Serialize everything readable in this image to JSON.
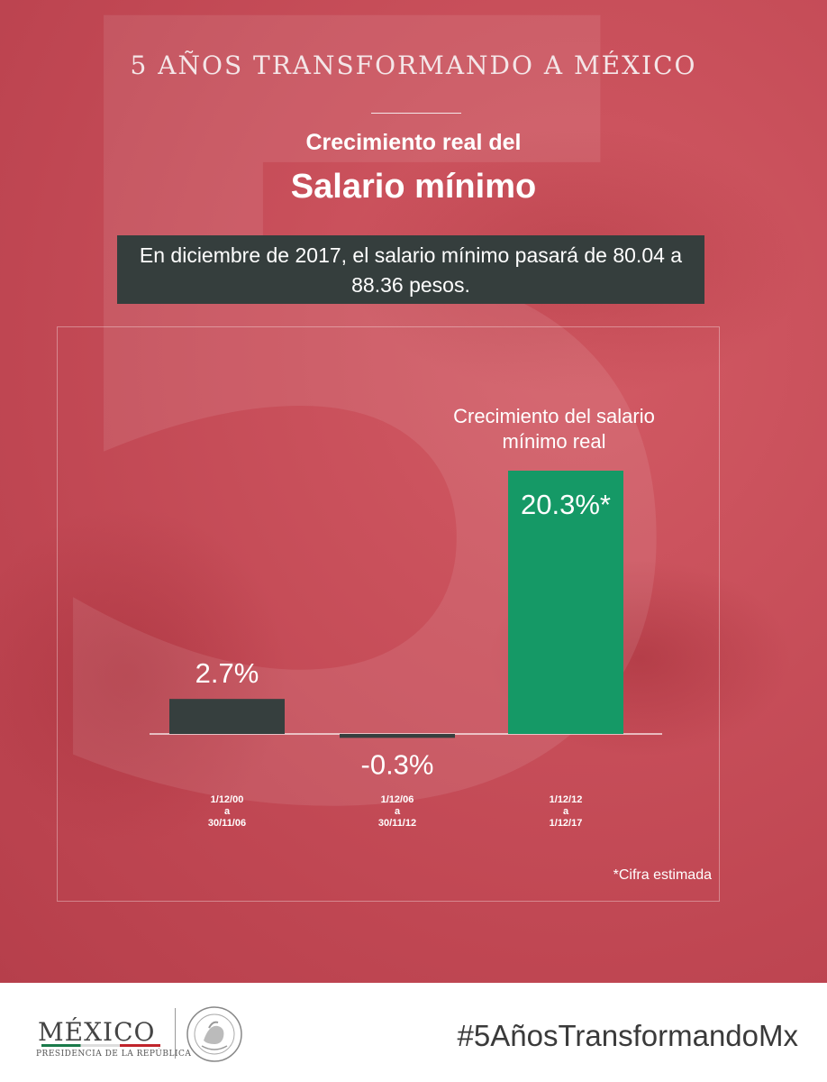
{
  "header": {
    "title": "5 AÑOS TRANSFORMANDO A MÉXICO",
    "subtitle": "Crecimiento real del",
    "main_title": "Salario mínimo",
    "note": "En diciembre de 2017, el salario mínimo pasará de 80.04 a 88.36 pesos."
  },
  "chart_data": {
    "type": "bar",
    "categories": [
      "1/12/00 a 30/11/06",
      "1/12/06 a 30/11/12",
      "1/12/12 a 1/12/17"
    ],
    "category_lines": [
      [
        "1/12/00",
        "a",
        "30/11/06"
      ],
      [
        "1/12/06",
        "a",
        "30/11/12"
      ],
      [
        "1/12/12",
        "a",
        "1/12/17"
      ]
    ],
    "values": [
      2.7,
      -0.3,
      20.3
    ],
    "data_labels": [
      "2.7%",
      "-0.3%",
      "20.3%*"
    ],
    "annotation": "Crecimiento del salario mínimo real",
    "footnote": "*Cifra estimada",
    "colors": [
      "#363f3e",
      "#363f3e",
      "#159966"
    ],
    "ylim": [
      -0.3,
      20.3
    ],
    "grid": false
  },
  "footer": {
    "logo_text": "MÉXICO",
    "logo_sub": "PRESIDENCIA DE LA REPÚBLICA",
    "hashtag": "#5AñosTransformandoMx"
  }
}
